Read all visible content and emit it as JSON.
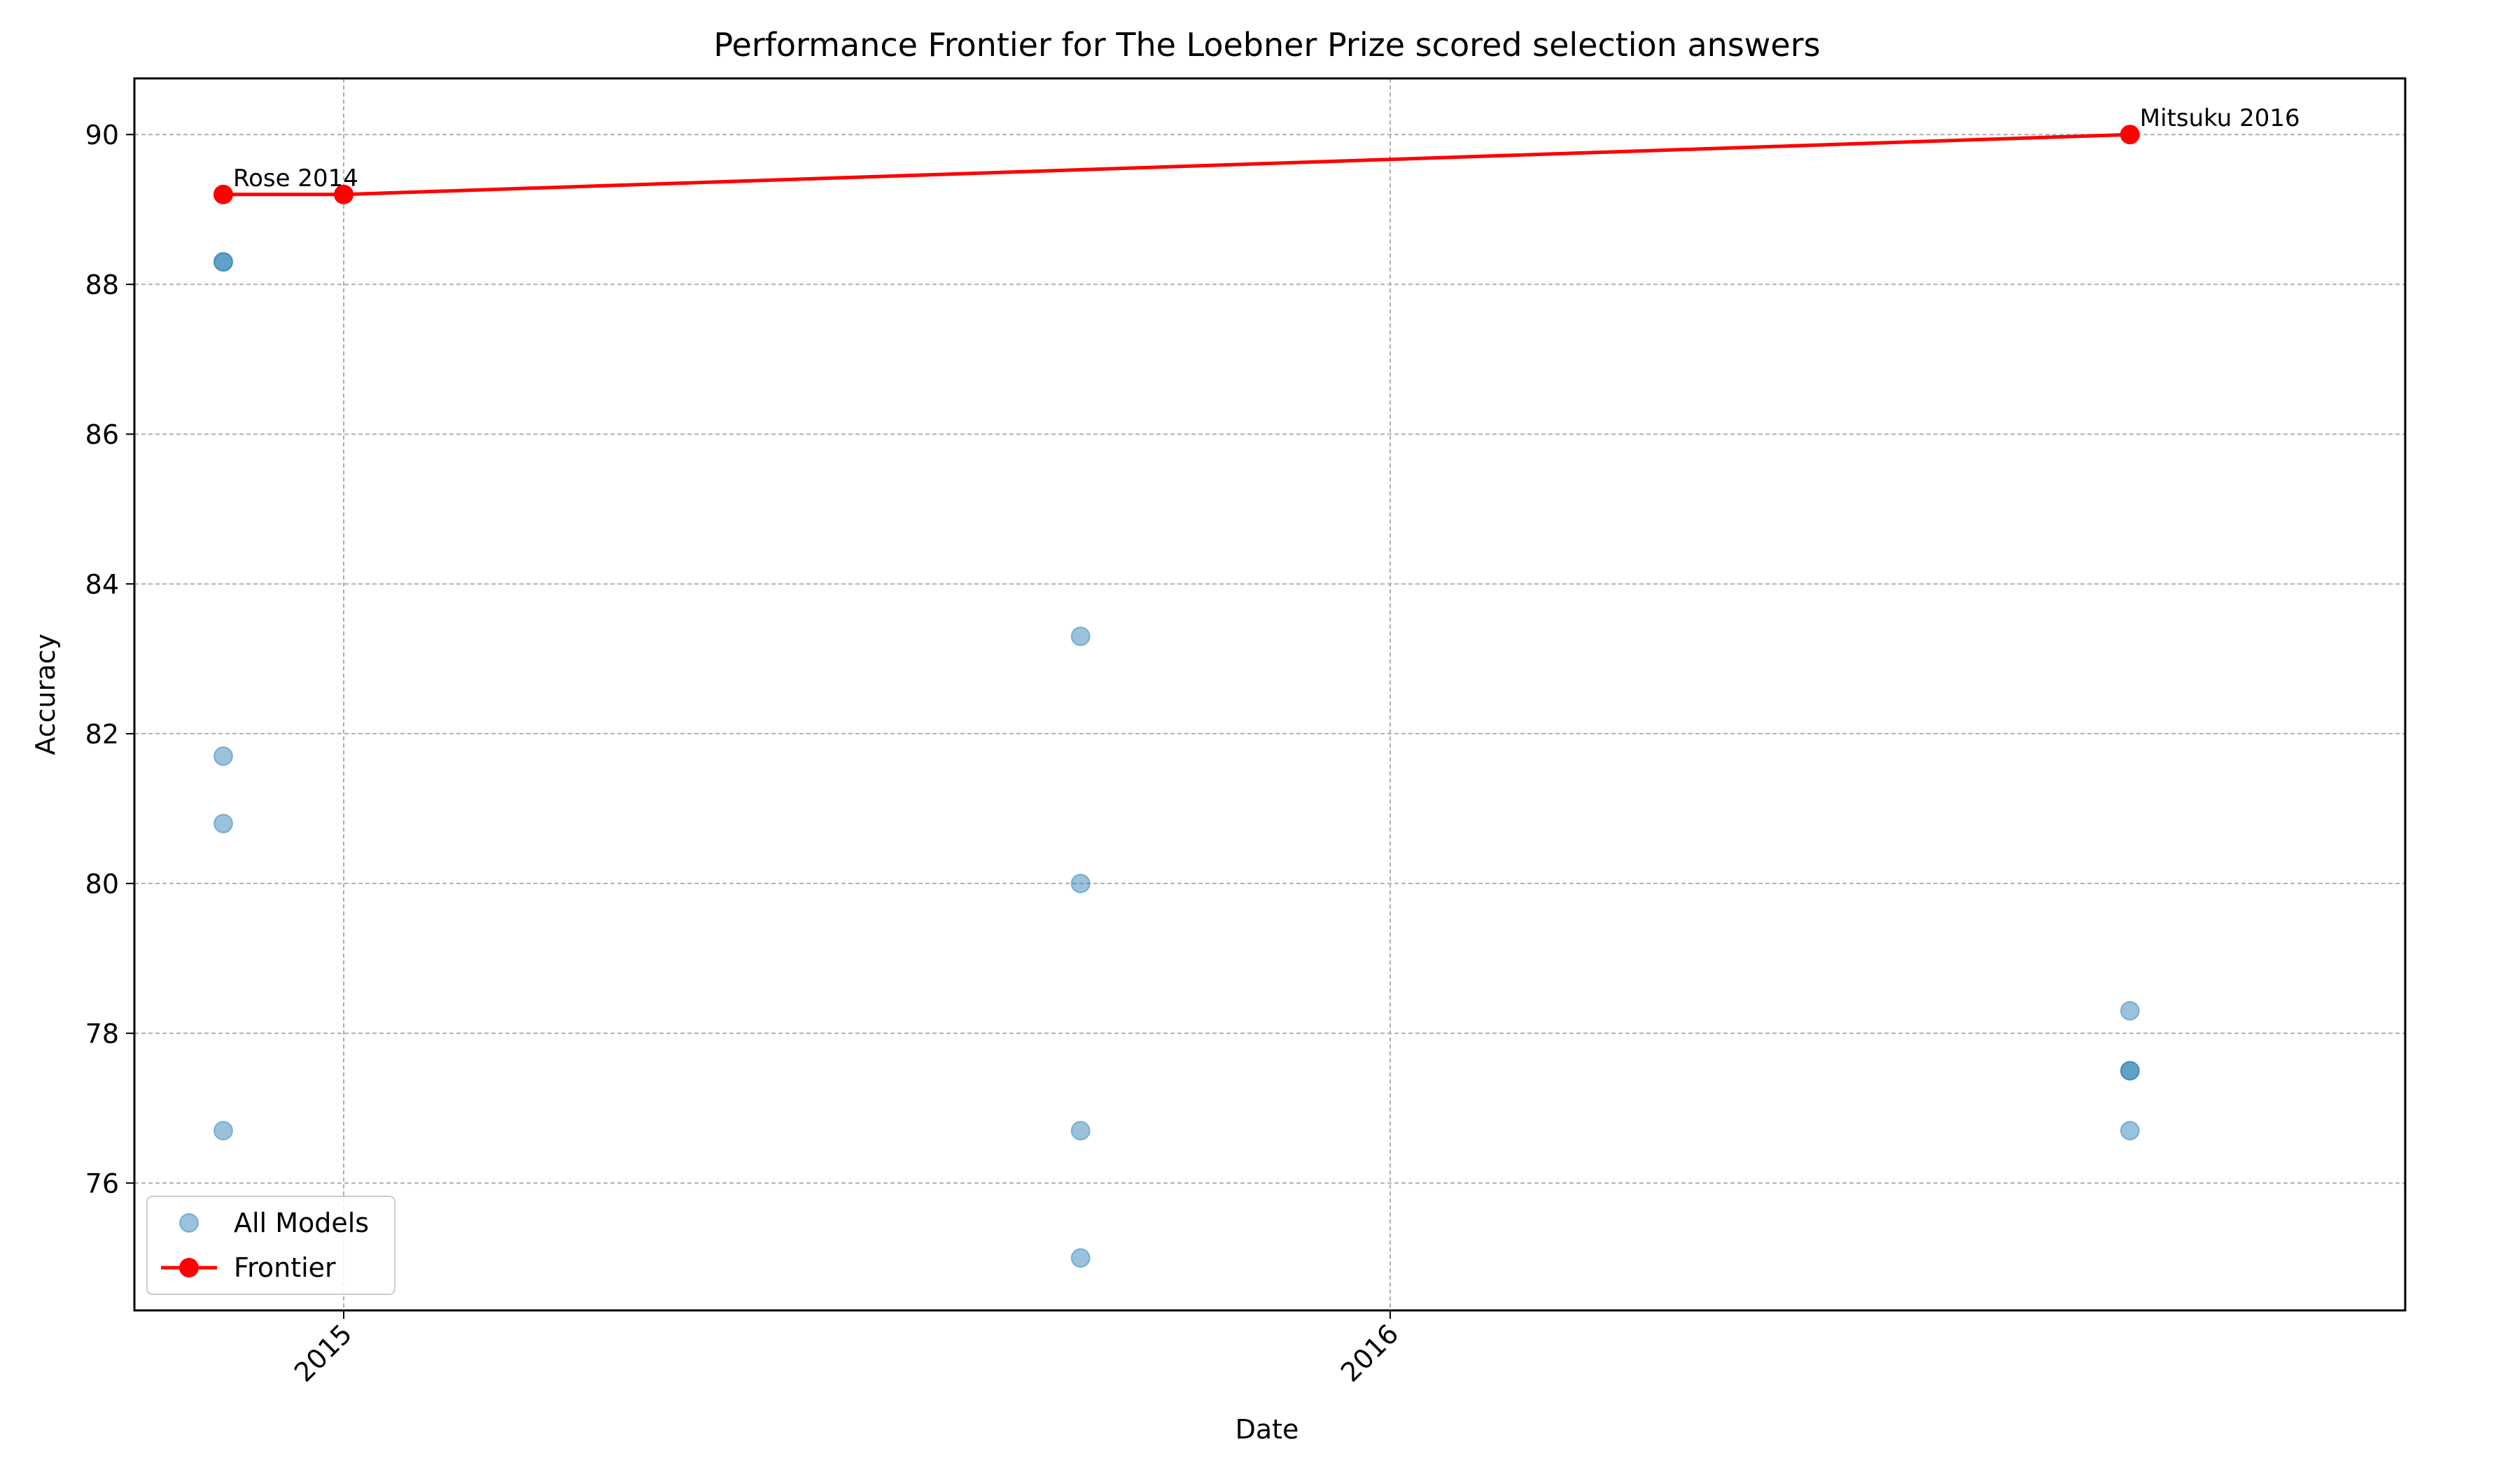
{
  "chart_data": {
    "type": "scatter",
    "title": "Performance Frontier for The Loebner Prize scored selection answers",
    "xlabel": "Date",
    "ylabel": "Accuracy",
    "xlim": [
      "2014-10-20",
      "2016-12-20"
    ],
    "ylim": [
      74.3,
      90.75
    ],
    "x_ticks": [
      {
        "value": "2015-01-01",
        "label": "2015"
      },
      {
        "value": "2016-01-01",
        "label": "2016"
      }
    ],
    "y_ticks": [
      76,
      78,
      80,
      82,
      84,
      86,
      88,
      90
    ],
    "grid": true,
    "legend_position": "lower-left",
    "series": [
      {
        "name": "All Models",
        "kind": "scatter",
        "color": "#1f77b4",
        "points": [
          {
            "x": "2014-11-20",
            "y": 88.3
          },
          {
            "x": "2014-11-20",
            "y": 88.3
          },
          {
            "x": "2014-11-20",
            "y": 81.7
          },
          {
            "x": "2014-11-20",
            "y": 80.8
          },
          {
            "x": "2014-11-20",
            "y": 76.7
          },
          {
            "x": "2015-09-15",
            "y": 83.3
          },
          {
            "x": "2015-09-15",
            "y": 80.0
          },
          {
            "x": "2015-09-15",
            "y": 76.7
          },
          {
            "x": "2015-09-15",
            "y": 75.0
          },
          {
            "x": "2016-09-15",
            "y": 78.3
          },
          {
            "x": "2016-09-15",
            "y": 77.5
          },
          {
            "x": "2016-09-15",
            "y": 77.5
          },
          {
            "x": "2016-09-15",
            "y": 76.7
          }
        ]
      },
      {
        "name": "Frontier",
        "kind": "line",
        "color": "#ff0000",
        "points": [
          {
            "x": "2014-11-20",
            "y": 89.2
          },
          {
            "x": "2015-01-01",
            "y": 89.2
          },
          {
            "x": "2016-09-15",
            "y": 90.0
          }
        ]
      }
    ],
    "annotations": [
      {
        "text": "Rose 2014",
        "x": "2014-11-20",
        "y": 89.2
      },
      {
        "text": "Mitsuku 2016",
        "x": "2016-09-15",
        "y": 90.0
      }
    ]
  }
}
